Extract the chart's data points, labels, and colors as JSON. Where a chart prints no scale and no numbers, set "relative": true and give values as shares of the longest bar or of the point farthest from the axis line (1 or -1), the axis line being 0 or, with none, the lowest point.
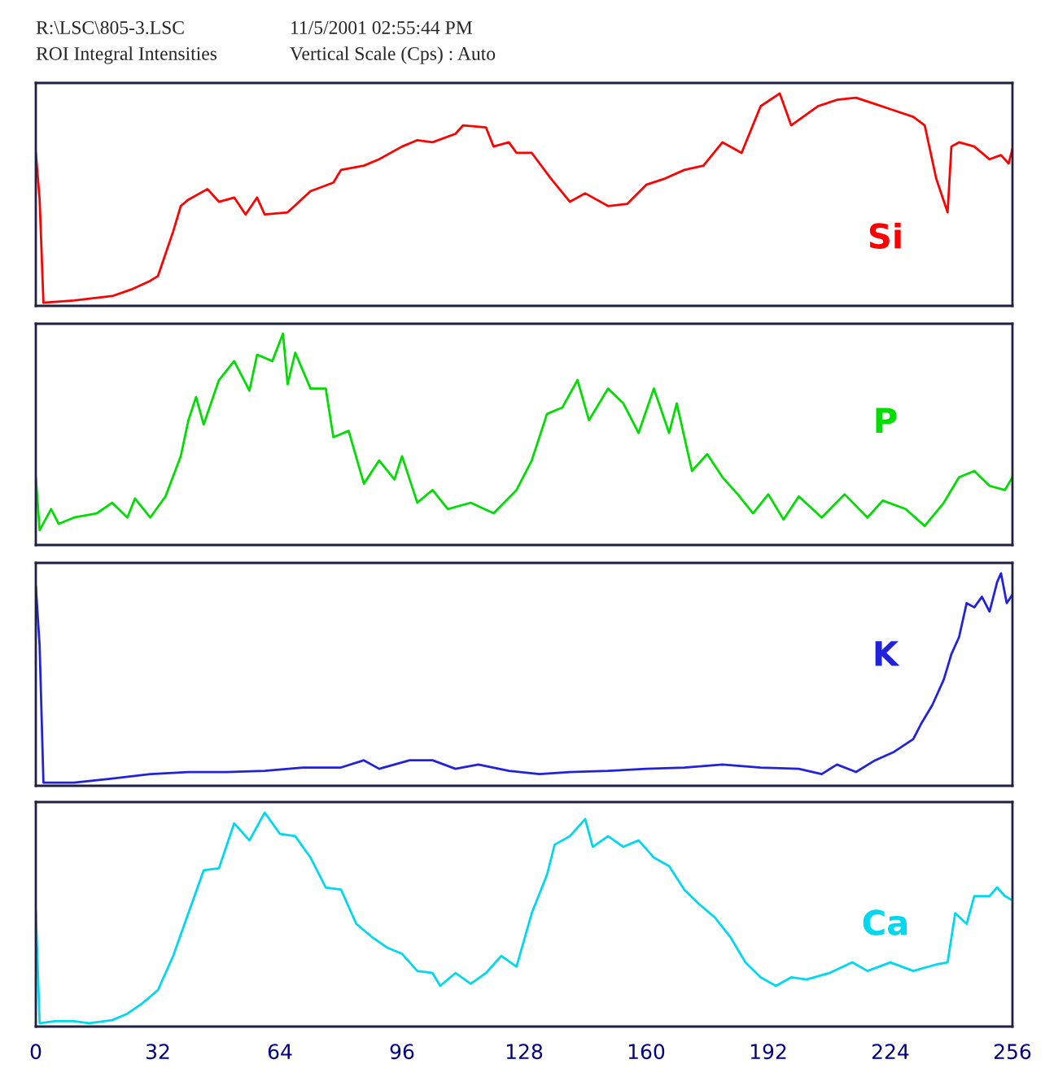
{
  "chart_data": [
    {
      "type": "line",
      "relative": true,
      "xlim": [
        0,
        256
      ],
      "tick_labels": false,
      "grid": false,
      "legend": false,
      "annotations": [
        "R:\\LSC\\805-3.LSC",
        "11/5/2001 02:55:44 PM",
        "ROI Integral Intensities",
        "Vertical Scale (Cps) : Auto"
      ],
      "series": [
        {
          "name": "Si",
          "color": "#ff0000",
          "x": [
            0,
            1,
            2,
            10,
            20,
            25,
            30,
            32,
            36,
            38,
            40,
            45,
            48,
            52,
            55,
            58,
            60,
            66,
            72,
            78,
            80,
            86,
            90,
            96,
            100,
            104,
            110,
            112,
            118,
            120,
            124,
            126,
            130,
            135,
            140,
            144,
            150,
            155,
            160,
            165,
            170,
            175,
            180,
            185,
            190,
            195,
            198,
            205,
            210,
            215,
            220,
            225,
            230,
            233,
            236,
            239,
            240,
            242,
            246,
            250,
            253,
            255,
            256
          ],
          "values": [
            0.72,
            0.5,
            0.015,
            0.025,
            0.046,
            0.077,
            0.118,
            0.14,
            0.35,
            0.47,
            0.5,
            0.55,
            0.49,
            0.51,
            0.43,
            0.51,
            0.43,
            0.44,
            0.54,
            0.58,
            0.64,
            0.66,
            0.69,
            0.75,
            0.78,
            0.77,
            0.81,
            0.85,
            0.84,
            0.75,
            0.77,
            0.72,
            0.72,
            0.6,
            0.49,
            0.53,
            0.47,
            0.48,
            0.57,
            0.6,
            0.64,
            0.66,
            0.77,
            0.72,
            0.94,
            1.0,
            0.85,
            0.94,
            0.97,
            0.98,
            0.95,
            0.92,
            0.89,
            0.85,
            0.6,
            0.44,
            0.75,
            0.77,
            0.75,
            0.69,
            0.71,
            0.67,
            0.74
          ]
        }
      ]
    },
    {
      "type": "line",
      "relative": true,
      "xlim": [
        0,
        256
      ],
      "tick_labels": false,
      "grid": false,
      "legend": false,
      "series": [
        {
          "name": "P",
          "color": "#00dd00",
          "x": [
            0,
            1,
            4,
            6,
            10,
            16,
            20,
            24,
            26,
            30,
            34,
            38,
            40,
            42,
            44,
            48,
            52,
            56,
            58,
            62,
            64.8,
            66,
            68,
            72,
            76,
            78,
            82,
            86,
            90,
            94,
            96,
            100,
            104,
            108,
            114,
            120,
            126,
            130,
            134,
            138,
            142,
            145,
            150,
            154,
            158,
            162,
            166,
            168,
            172,
            176,
            180,
            184,
            188,
            192,
            196,
            200,
            206,
            212,
            218,
            222,
            228,
            233,
            238,
            242,
            246,
            250,
            254,
            256
          ],
          "values": [
            0.32,
            0.07,
            0.17,
            0.1,
            0.13,
            0.15,
            0.2,
            0.13,
            0.22,
            0.13,
            0.23,
            0.42,
            0.59,
            0.7,
            0.57,
            0.78,
            0.87,
            0.73,
            0.9,
            0.87,
            1.0,
            0.76,
            0.91,
            0.74,
            0.74,
            0.51,
            0.54,
            0.29,
            0.4,
            0.31,
            0.42,
            0.2,
            0.26,
            0.17,
            0.2,
            0.15,
            0.26,
            0.4,
            0.62,
            0.65,
            0.78,
            0.59,
            0.74,
            0.67,
            0.53,
            0.74,
            0.53,
            0.67,
            0.35,
            0.43,
            0.32,
            0.24,
            0.15,
            0.24,
            0.12,
            0.23,
            0.13,
            0.24,
            0.13,
            0.21,
            0.17,
            0.09,
            0.2,
            0.32,
            0.35,
            0.28,
            0.26,
            0.32
          ]
        }
      ]
    },
    {
      "type": "line",
      "relative": true,
      "xlim": [
        0,
        256
      ],
      "tick_labels": false,
      "grid": false,
      "legend": false,
      "series": [
        {
          "name": "K",
          "color": "#2222dd",
          "x": [
            0,
            1,
            2,
            10,
            20,
            30,
            40,
            50,
            60,
            70,
            80,
            86,
            90,
            98,
            104,
            110,
            116,
            124,
            132,
            140,
            150,
            160,
            170,
            180,
            190,
            200,
            206,
            210,
            215,
            220,
            225,
            230,
            232,
            235,
            238,
            240,
            242,
            244,
            246,
            248,
            250,
            252,
            253,
            254.5,
            256
          ],
          "values": [
            0.94,
            0.66,
            0.015,
            0.015,
            0.034,
            0.055,
            0.065,
            0.065,
            0.07,
            0.086,
            0.086,
            0.12,
            0.08,
            0.12,
            0.12,
            0.08,
            0.1,
            0.07,
            0.055,
            0.065,
            0.07,
            0.08,
            0.086,
            0.1,
            0.086,
            0.08,
            0.055,
            0.1,
            0.065,
            0.12,
            0.16,
            0.22,
            0.29,
            0.38,
            0.5,
            0.62,
            0.7,
            0.86,
            0.84,
            0.89,
            0.82,
            0.96,
            1.0,
            0.86,
            0.9
          ]
        }
      ]
    },
    {
      "type": "line",
      "relative": true,
      "xlim": [
        0,
        256
      ],
      "xticks": [
        0,
        32,
        64,
        96,
        128,
        160,
        192,
        224,
        256
      ],
      "tick_labels": "x",
      "grid": false,
      "legend": false,
      "series": [
        {
          "name": "Ca",
          "color": "#00d8f0",
          "x": [
            0,
            1,
            5,
            10,
            14,
            20,
            24,
            28,
            32,
            36,
            40,
            44,
            48,
            52,
            56,
            60,
            64,
            68,
            72,
            76,
            80,
            84,
            88,
            92,
            96,
            100,
            104,
            106,
            110,
            114,
            118,
            122,
            126,
            130,
            134,
            136,
            140,
            144,
            146,
            150,
            154,
            158,
            162,
            166,
            170,
            174,
            178,
            182,
            186,
            190,
            194,
            198,
            202,
            208,
            214,
            218,
            224,
            230,
            236,
            239,
            241,
            244,
            246,
            250,
            252,
            254,
            256
          ],
          "values": [
            0.54,
            0.016,
            0.025,
            0.025,
            0.016,
            0.03,
            0.06,
            0.11,
            0.17,
            0.33,
            0.53,
            0.73,
            0.74,
            0.95,
            0.87,
            1.0,
            0.9,
            0.89,
            0.79,
            0.65,
            0.64,
            0.48,
            0.42,
            0.37,
            0.34,
            0.26,
            0.25,
            0.19,
            0.25,
            0.2,
            0.25,
            0.33,
            0.28,
            0.53,
            0.71,
            0.85,
            0.89,
            0.97,
            0.84,
            0.89,
            0.84,
            0.87,
            0.79,
            0.75,
            0.64,
            0.57,
            0.51,
            0.42,
            0.3,
            0.23,
            0.19,
            0.23,
            0.22,
            0.25,
            0.3,
            0.26,
            0.3,
            0.26,
            0.29,
            0.3,
            0.53,
            0.48,
            0.61,
            0.61,
            0.65,
            0.61,
            0.59
          ]
        }
      ]
    }
  ]
}
